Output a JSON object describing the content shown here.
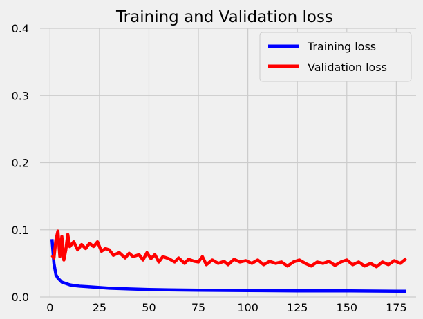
{
  "chart_data": {
    "type": "line",
    "title": "Training and Validation loss",
    "xlabel": "",
    "ylabel": "",
    "xlim": [
      -5,
      185
    ],
    "ylim": [
      0,
      0.4
    ],
    "x_ticks": [
      0,
      25,
      50,
      75,
      100,
      125,
      150,
      175
    ],
    "y_ticks": [
      0.0,
      0.1,
      0.2,
      0.3,
      0.4
    ],
    "grid": true,
    "legend_position": "top-right",
    "series": [
      {
        "name": "Training loss",
        "color": "#0000ff",
        "points": [
          [
            1,
            0.086
          ],
          [
            2,
            0.05
          ],
          [
            3,
            0.033
          ],
          [
            4,
            0.028
          ],
          [
            5,
            0.025
          ],
          [
            6,
            0.022
          ],
          [
            8,
            0.02
          ],
          [
            10,
            0.018
          ],
          [
            12,
            0.017
          ],
          [
            15,
            0.016
          ],
          [
            20,
            0.015
          ],
          [
            25,
            0.014
          ],
          [
            30,
            0.013
          ],
          [
            40,
            0.012
          ],
          [
            50,
            0.011
          ],
          [
            60,
            0.0105
          ],
          [
            75,
            0.01
          ],
          [
            100,
            0.0095
          ],
          [
            125,
            0.009
          ],
          [
            150,
            0.009
          ],
          [
            175,
            0.0085
          ],
          [
            180,
            0.0085
          ]
        ]
      },
      {
        "name": "Validation loss",
        "color": "#ff0000",
        "points": [
          [
            1,
            0.062
          ],
          [
            2,
            0.058
          ],
          [
            3,
            0.085
          ],
          [
            4,
            0.098
          ],
          [
            5,
            0.06
          ],
          [
            6,
            0.09
          ],
          [
            7,
            0.055
          ],
          [
            8,
            0.07
          ],
          [
            9,
            0.093
          ],
          [
            10,
            0.075
          ],
          [
            12,
            0.082
          ],
          [
            14,
            0.07
          ],
          [
            16,
            0.078
          ],
          [
            18,
            0.072
          ],
          [
            20,
            0.08
          ],
          [
            22,
            0.075
          ],
          [
            24,
            0.082
          ],
          [
            26,
            0.068
          ],
          [
            28,
            0.072
          ],
          [
            30,
            0.07
          ],
          [
            32,
            0.062
          ],
          [
            35,
            0.066
          ],
          [
            38,
            0.058
          ],
          [
            40,
            0.065
          ],
          [
            42,
            0.06
          ],
          [
            45,
            0.063
          ],
          [
            47,
            0.055
          ],
          [
            49,
            0.066
          ],
          [
            51,
            0.057
          ],
          [
            53,
            0.063
          ],
          [
            55,
            0.052
          ],
          [
            57,
            0.06
          ],
          [
            60,
            0.057
          ],
          [
            63,
            0.052
          ],
          [
            65,
            0.058
          ],
          [
            68,
            0.05
          ],
          [
            70,
            0.056
          ],
          [
            73,
            0.053
          ],
          [
            75,
            0.052
          ],
          [
            77,
            0.06
          ],
          [
            79,
            0.048
          ],
          [
            82,
            0.055
          ],
          [
            85,
            0.05
          ],
          [
            88,
            0.053
          ],
          [
            90,
            0.048
          ],
          [
            93,
            0.056
          ],
          [
            96,
            0.052
          ],
          [
            99,
            0.054
          ],
          [
            102,
            0.05
          ],
          [
            105,
            0.055
          ],
          [
            108,
            0.048
          ],
          [
            111,
            0.053
          ],
          [
            114,
            0.05
          ],
          [
            117,
            0.052
          ],
          [
            120,
            0.046
          ],
          [
            123,
            0.052
          ],
          [
            126,
            0.055
          ],
          [
            129,
            0.05
          ],
          [
            132,
            0.046
          ],
          [
            135,
            0.052
          ],
          [
            138,
            0.05
          ],
          [
            141,
            0.053
          ],
          [
            144,
            0.047
          ],
          [
            147,
            0.052
          ],
          [
            150,
            0.055
          ],
          [
            153,
            0.048
          ],
          [
            156,
            0.052
          ],
          [
            159,
            0.046
          ],
          [
            162,
            0.05
          ],
          [
            165,
            0.045
          ],
          [
            168,
            0.052
          ],
          [
            171,
            0.048
          ],
          [
            174,
            0.054
          ],
          [
            177,
            0.05
          ],
          [
            180,
            0.057
          ]
        ]
      }
    ]
  }
}
